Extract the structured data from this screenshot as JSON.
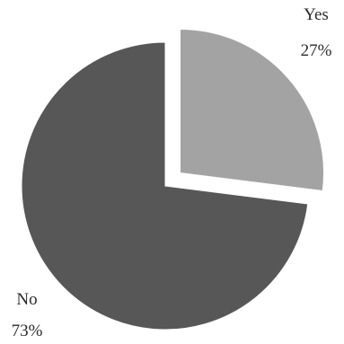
{
  "chart_data": {
    "type": "pie",
    "title": "",
    "slices": [
      {
        "label": "Yes",
        "value": 27,
        "value_label": "27%",
        "color": "#a3a3a3",
        "exploded": true
      },
      {
        "label": "No",
        "value": 73,
        "value_label": "73%",
        "color": "#575757",
        "exploded": false
      }
    ]
  }
}
